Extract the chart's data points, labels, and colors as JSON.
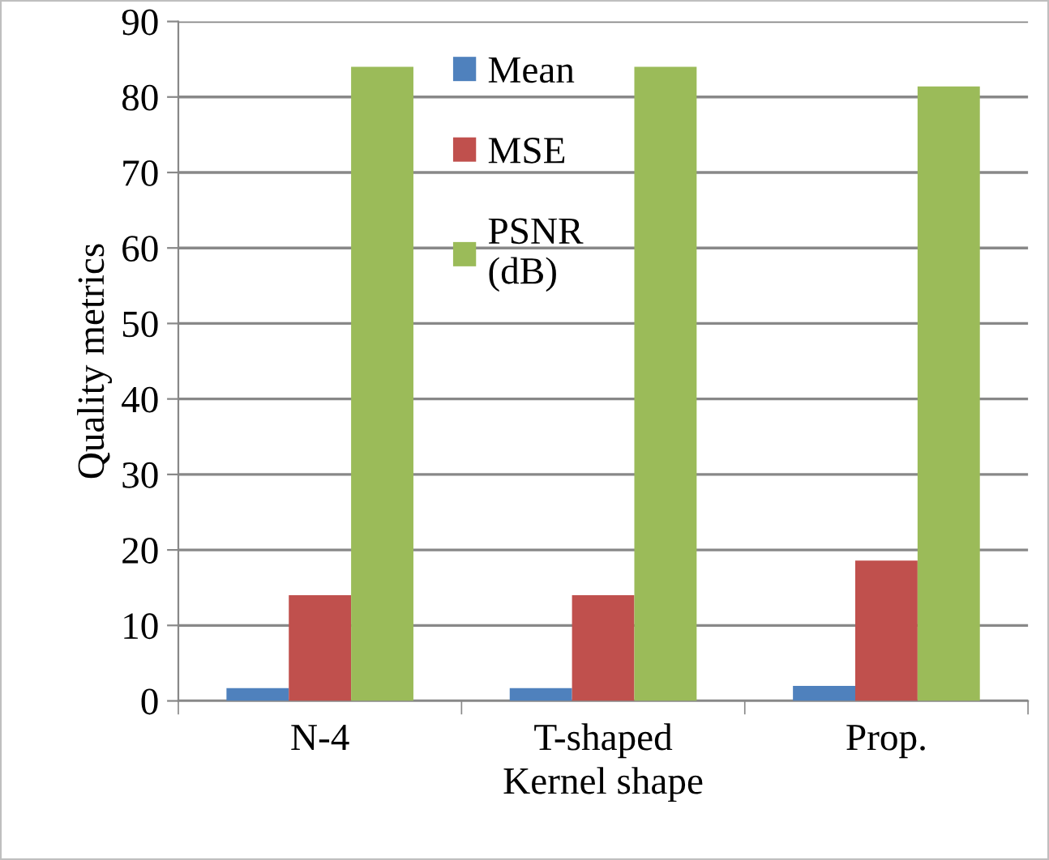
{
  "chart_data": {
    "type": "bar",
    "xlabel": "Kernel shape",
    "ylabel": "Quality metrics",
    "categories": [
      "N-4",
      "T-shaped",
      "Prop."
    ],
    "series": [
      {
        "name": "Mean",
        "color": "#4f81bd",
        "values": [
          1.7,
          1.7,
          2.0
        ]
      },
      {
        "name": "MSE",
        "color": "#c0504d",
        "values": [
          14.0,
          14.0,
          18.6
        ]
      },
      {
        "name": "PSNR\n(dB)",
        "color": "#9bbb59",
        "values": [
          84.0,
          84.0,
          81.4
        ]
      }
    ],
    "ylim": [
      0,
      90
    ],
    "yticks": [
      0,
      10,
      20,
      30,
      40,
      50,
      60,
      70,
      80,
      90
    ],
    "grid": "y",
    "legend": "top"
  }
}
